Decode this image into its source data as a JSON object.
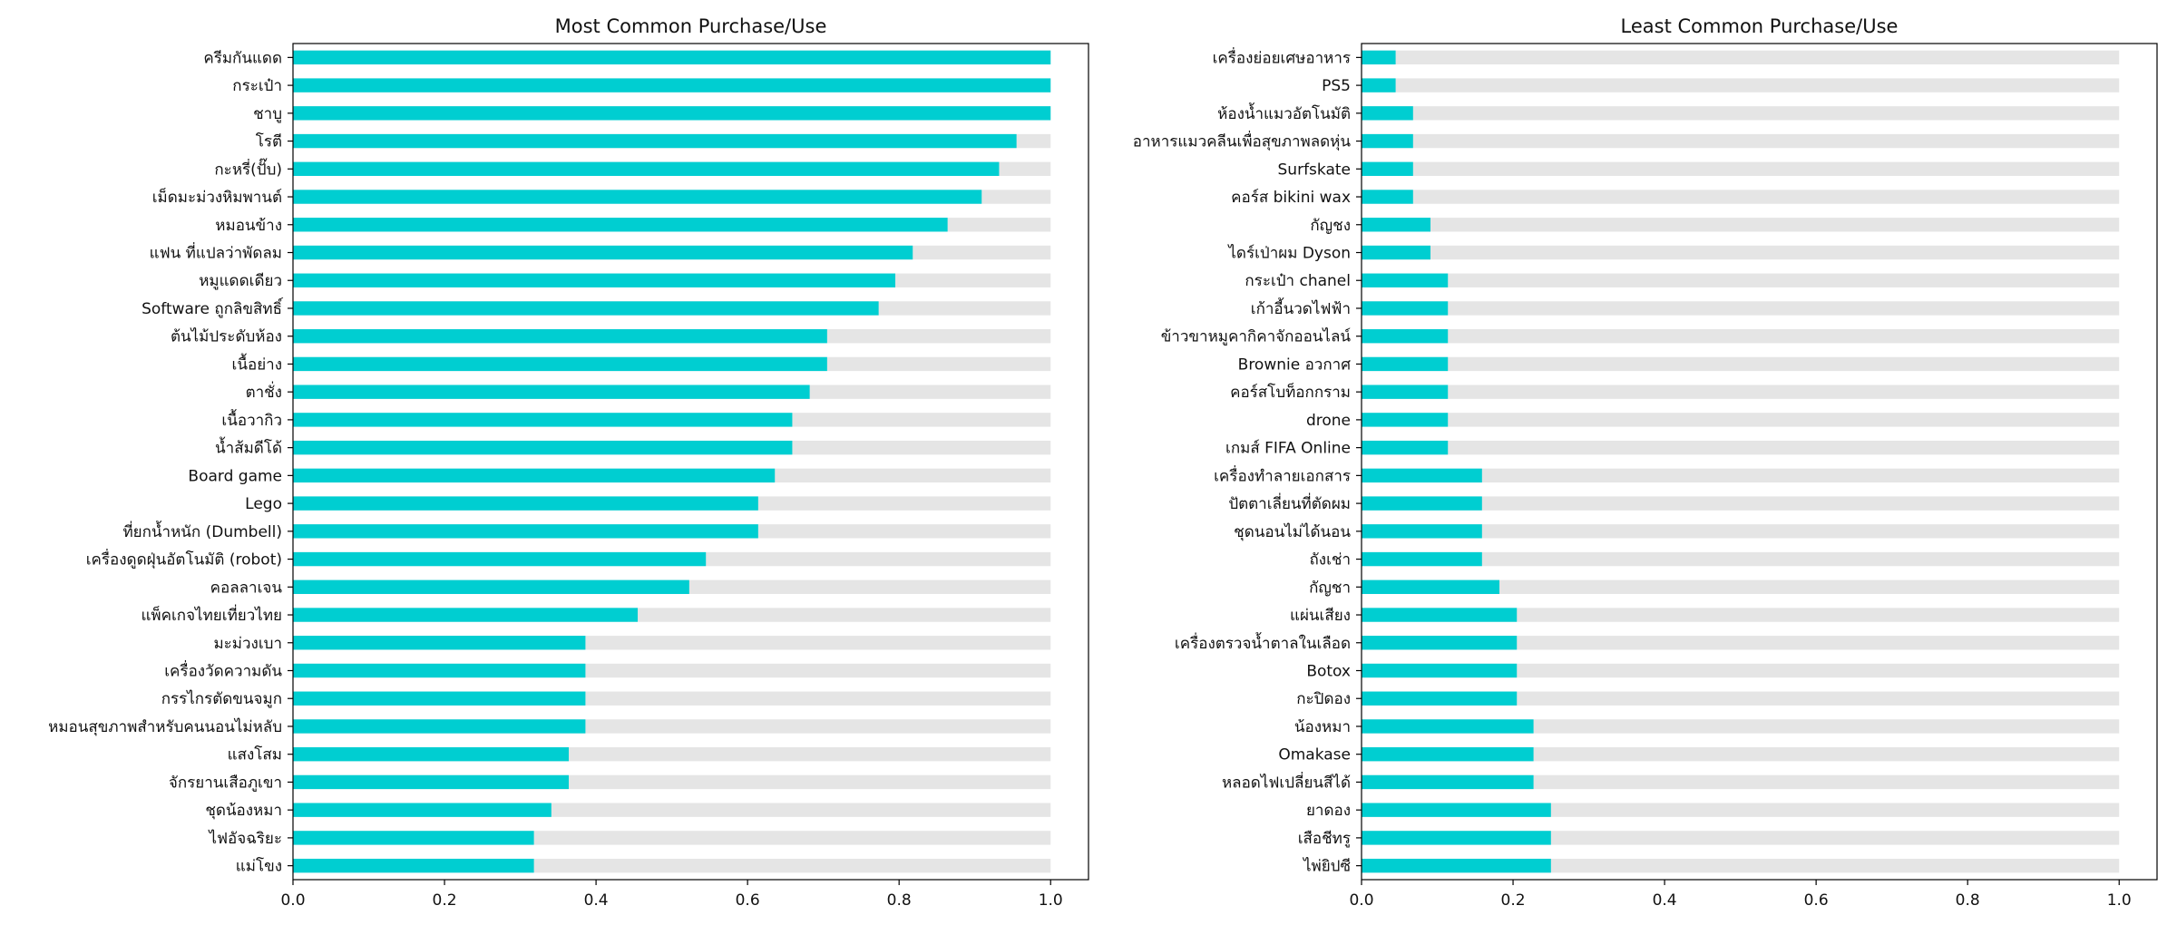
{
  "colors": {
    "bar": "#00CED1",
    "track": "#E5E5E5",
    "axis": "#000000"
  },
  "chart_data": [
    {
      "type": "bar",
      "orientation": "horizontal",
      "title": "Most Common Purchase/Use",
      "xlim": [
        0,
        1.05
      ],
      "xticks": [
        "0.0",
        "0.2",
        "0.4",
        "0.6",
        "0.8",
        "1.0"
      ],
      "categories": [
        "ครีมกันแดด",
        "กระเป๋า",
        "ชาบู",
        "โรตี",
        "กะหรี่(ปั๊บ)",
        "เม็ดมะม่วงหิมพานต์",
        "หมอนข้าง",
        "แฟน ที่แปลว่าพัดลม",
        "หมูแดดเดียว",
        "Software ถูกลิขสิทธิ์",
        "ต้นไม้ประดับห้อง",
        "เนื้อย่าง",
        "ตาชั่ง",
        "เนื้อวากิว",
        "น้ำส้มดีโด้",
        "Board game",
        "Lego",
        "ที่ยกน้ำหนัก (Dumbell)",
        "เครื่องดูดฝุ่นอัตโนมัติ (robot)",
        "คอลลาเจน",
        "แพ็คเกจไทยเที่ยวไทย",
        "มะม่วงเบา",
        "เครื่องวัดความดัน",
        "กรรไกรตัดขนจมูก",
        "หมอนสุขภาพสำหรับคนนอนไม่หลับ",
        "แสงโสม",
        "จักรยานเสือภูเขา",
        "ชุดน้องหมา",
        "ไฟอัจฉริยะ",
        "แม่โขง"
      ],
      "values": [
        1.0,
        1.0,
        1.0,
        0.955,
        0.932,
        0.909,
        0.864,
        0.818,
        0.795,
        0.773,
        0.705,
        0.705,
        0.682,
        0.659,
        0.659,
        0.636,
        0.614,
        0.614,
        0.545,
        0.523,
        0.455,
        0.386,
        0.386,
        0.386,
        0.386,
        0.364,
        0.364,
        0.341,
        0.318,
        0.318
      ],
      "background_values": 1.0
    },
    {
      "type": "bar",
      "orientation": "horizontal",
      "title": "Least Common Purchase/Use",
      "xlim": [
        0,
        1.05
      ],
      "xticks": [
        "0.0",
        "0.2",
        "0.4",
        "0.6",
        "0.8",
        "1.0"
      ],
      "categories": [
        "เครื่องย่อยเศษอาหาร",
        "PS5",
        "ห้องน้ำแมวอัตโนมัติ",
        "อาหารแมวคลีนเพื่อสุขภาพลดหุ่น",
        "Surfskate",
        "คอร์ส bikini wax",
        "กัญชง",
        "ไดร์เป่าผม Dyson",
        "กระเป๋า chanel",
        "เก้าอี้นวดไฟฟ้า",
        "ข้าวขาหมูคากิคาจักออนไลน์",
        "Brownie อวกาศ",
        "คอร์สโบท็อกกราม",
        "drone",
        "เกมส์ FIFA Online",
        "เครื่องทำลายเอกสาร",
        "ปัตตาเลี่ยนที่ตัดผม",
        "ชุดนอนไม่ได้นอน",
        "ถังเช่า",
        "กัญชา",
        "แผ่นเสียง",
        "เครื่องตรวจน้ำตาลในเลือด",
        "Botox",
        "กะปิดอง",
        "น้องหมา",
        "Omakase",
        "หลอดไฟเปลี่ยนสีได้",
        "ยาดอง",
        "เสือชีทรู",
        "ไพ่ยิปซี"
      ],
      "values": [
        0.045,
        0.045,
        0.068,
        0.068,
        0.068,
        0.068,
        0.091,
        0.091,
        0.114,
        0.114,
        0.114,
        0.114,
        0.114,
        0.114,
        0.114,
        0.159,
        0.159,
        0.159,
        0.159,
        0.182,
        0.205,
        0.205,
        0.205,
        0.205,
        0.227,
        0.227,
        0.227,
        0.25,
        0.25,
        0.25
      ],
      "background_values": 1.0
    }
  ]
}
